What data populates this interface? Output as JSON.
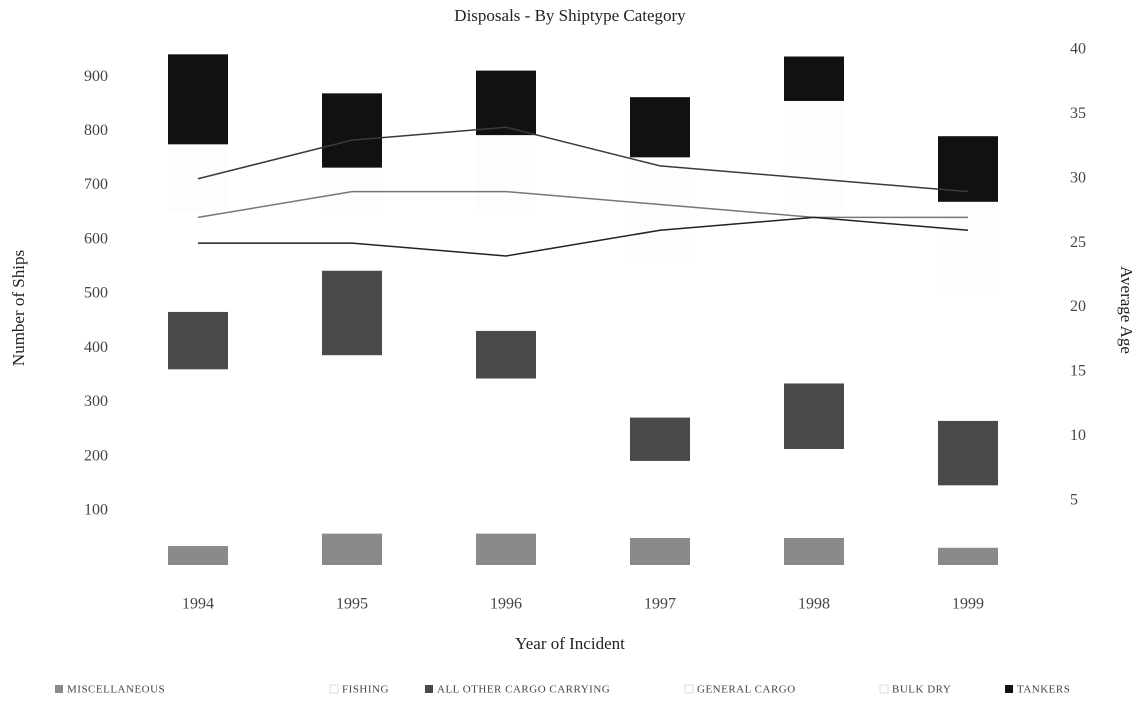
{
  "chart_data": {
    "type": "bar",
    "stacked": true,
    "title": "Disposals - By Shiptype Category",
    "x_label": "Year of Incident",
    "y_label": "Number of Ships",
    "y2_label": "Average Age",
    "categories": [
      "1994",
      "1995",
      "1996",
      "1997",
      "1998",
      "1999"
    ],
    "series": [
      {
        "name": "MISCELLANEOUS",
        "color": "#8a8a8a",
        "values": [
          35,
          58,
          58,
          50,
          50,
          32
        ]
      },
      {
        "name": "FISHING",
        "color": "#ffffff",
        "values": [
          326,
          329,
          286,
          142,
          164,
          115
        ]
      },
      {
        "name": "ALL OTHER CARGO CARRYING",
        "color": "#4a4a4a",
        "values": [
          106,
          156,
          88,
          80,
          121,
          119
        ]
      },
      {
        "name": "GENERAL CARGO",
        "color": "#ffffff",
        "values": [
          185,
          114,
          217,
          288,
          313,
          242
        ]
      },
      {
        "name": "BULK DRY",
        "color": "#fdfdfd",
        "values": [
          124,
          76,
          144,
          192,
          208,
          162
        ]
      },
      {
        "name": "TANKERS",
        "color": "#111111",
        "values": [
          166,
          137,
          119,
          111,
          82,
          121
        ]
      },
      {
        "color": "#3a3a3a",
        "axis": "y2",
        "values": [
          30,
          33,
          34,
          31,
          30,
          29
        ]
      },
      {
        "color": "#777777",
        "axis": "y2",
        "values": [
          27,
          29,
          29,
          28,
          27,
          27
        ]
      },
      {
        "color": "#222222",
        "axis": "y2",
        "values": [
          25,
          25,
          24,
          26,
          27,
          26
        ]
      }
    ],
    "ylim": [
      0,
      950
    ],
    "yticks": [
      100,
      200,
      300,
      400,
      500,
      600,
      700,
      800,
      900
    ],
    "y2lim": [
      0,
      40
    ],
    "y2ticks": [
      5,
      10,
      15,
      20,
      25,
      30,
      35,
      40
    ],
    "grid": false
  }
}
